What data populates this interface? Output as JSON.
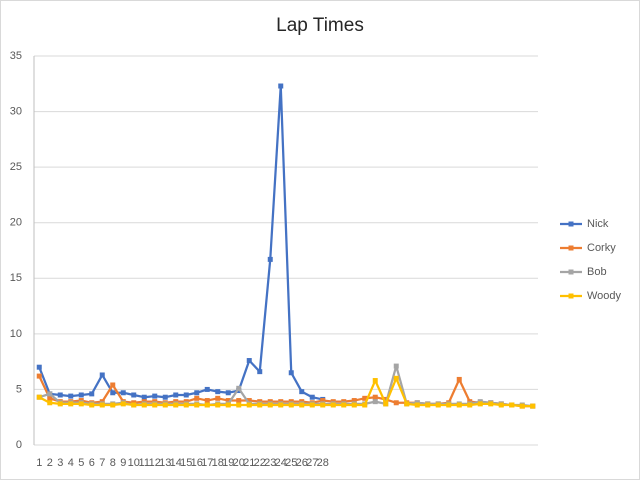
{
  "chart_data": {
    "type": "line",
    "title": "Lap Times",
    "categories": [
      "1",
      "2",
      "3",
      "4",
      "5",
      "6",
      "7",
      "8",
      "9",
      "10",
      "11",
      "12",
      "13",
      "14",
      "15",
      "16",
      "17",
      "18",
      "19",
      "20",
      "21",
      "22",
      "23",
      "24",
      "25",
      "26",
      "27",
      "28",
      null,
      null,
      null,
      null,
      null,
      null,
      null,
      null,
      null,
      null,
      null,
      null,
      null,
      null,
      null,
      null,
      null,
      null,
      null,
      null
    ],
    "series": [
      {
        "name": "Nick",
        "color": "#4472c4",
        "values": [
          7.0,
          4.6,
          4.5,
          4.4,
          4.5,
          4.6,
          6.3,
          4.7,
          4.7,
          4.5,
          4.3,
          4.4,
          4.3,
          4.5,
          4.5,
          4.7,
          5.0,
          4.8,
          4.7,
          4.9,
          7.6,
          6.6,
          16.7,
          32.3,
          6.5,
          4.8,
          4.3,
          4.1,
          null,
          null,
          null,
          null,
          null,
          null,
          null,
          null,
          null,
          null,
          null,
          null,
          null,
          null,
          null,
          null,
          null,
          null,
          null,
          null
        ]
      },
      {
        "name": "Corky",
        "color": "#ed7d31",
        "values": [
          6.2,
          4.2,
          3.9,
          3.9,
          4.0,
          3.8,
          3.9,
          5.4,
          3.9,
          3.8,
          3.9,
          3.9,
          3.8,
          3.9,
          3.9,
          4.2,
          4.0,
          4.2,
          4.0,
          4.0,
          4.0,
          3.9,
          3.9,
          3.9,
          3.9,
          3.9,
          3.8,
          4.0,
          3.9,
          3.9,
          4.0,
          4.2,
          4.3,
          4.1,
          3.8,
          3.8,
          3.8,
          3.7,
          3.7,
          3.8,
          5.9,
          3.9,
          3.8,
          3.8,
          3.7,
          3.6,
          3.5,
          3.5
        ]
      },
      {
        "name": "Bob",
        "color": "#a5a5a5",
        "values": [
          4.3,
          4.6,
          3.8,
          3.8,
          3.8,
          3.7,
          3.7,
          3.7,
          3.8,
          3.6,
          3.7,
          3.7,
          3.7,
          3.7,
          3.7,
          3.7,
          3.6,
          3.7,
          3.7,
          5.1,
          3.7,
          3.7,
          3.7,
          3.7,
          3.7,
          3.7,
          3.7,
          3.7,
          3.7,
          3.7,
          3.7,
          3.7,
          3.9,
          3.7,
          7.1,
          3.7,
          3.8,
          3.7,
          3.7,
          3.7,
          3.7,
          3.7,
          3.9,
          3.8,
          3.7,
          3.6,
          3.6,
          3.5
        ]
      },
      {
        "name": "Woody",
        "color": "#ffc000",
        "values": [
          4.3,
          3.8,
          3.7,
          3.7,
          3.7,
          3.6,
          3.6,
          3.6,
          3.7,
          3.6,
          3.6,
          3.6,
          3.6,
          3.6,
          3.6,
          3.6,
          3.6,
          3.6,
          3.6,
          3.6,
          3.6,
          3.6,
          3.6,
          3.6,
          3.6,
          3.6,
          3.6,
          3.6,
          3.6,
          3.6,
          3.6,
          3.6,
          5.8,
          3.7,
          6.0,
          3.7,
          3.6,
          3.6,
          3.6,
          3.6,
          3.6,
          3.6,
          3.7,
          3.7,
          3.6,
          3.6,
          3.5,
          3.5
        ]
      }
    ],
    "ylim": [
      0,
      35
    ],
    "yticks": [
      0,
      5,
      10,
      15,
      20,
      25,
      30,
      35
    ],
    "grid": true,
    "legend": "right"
  }
}
